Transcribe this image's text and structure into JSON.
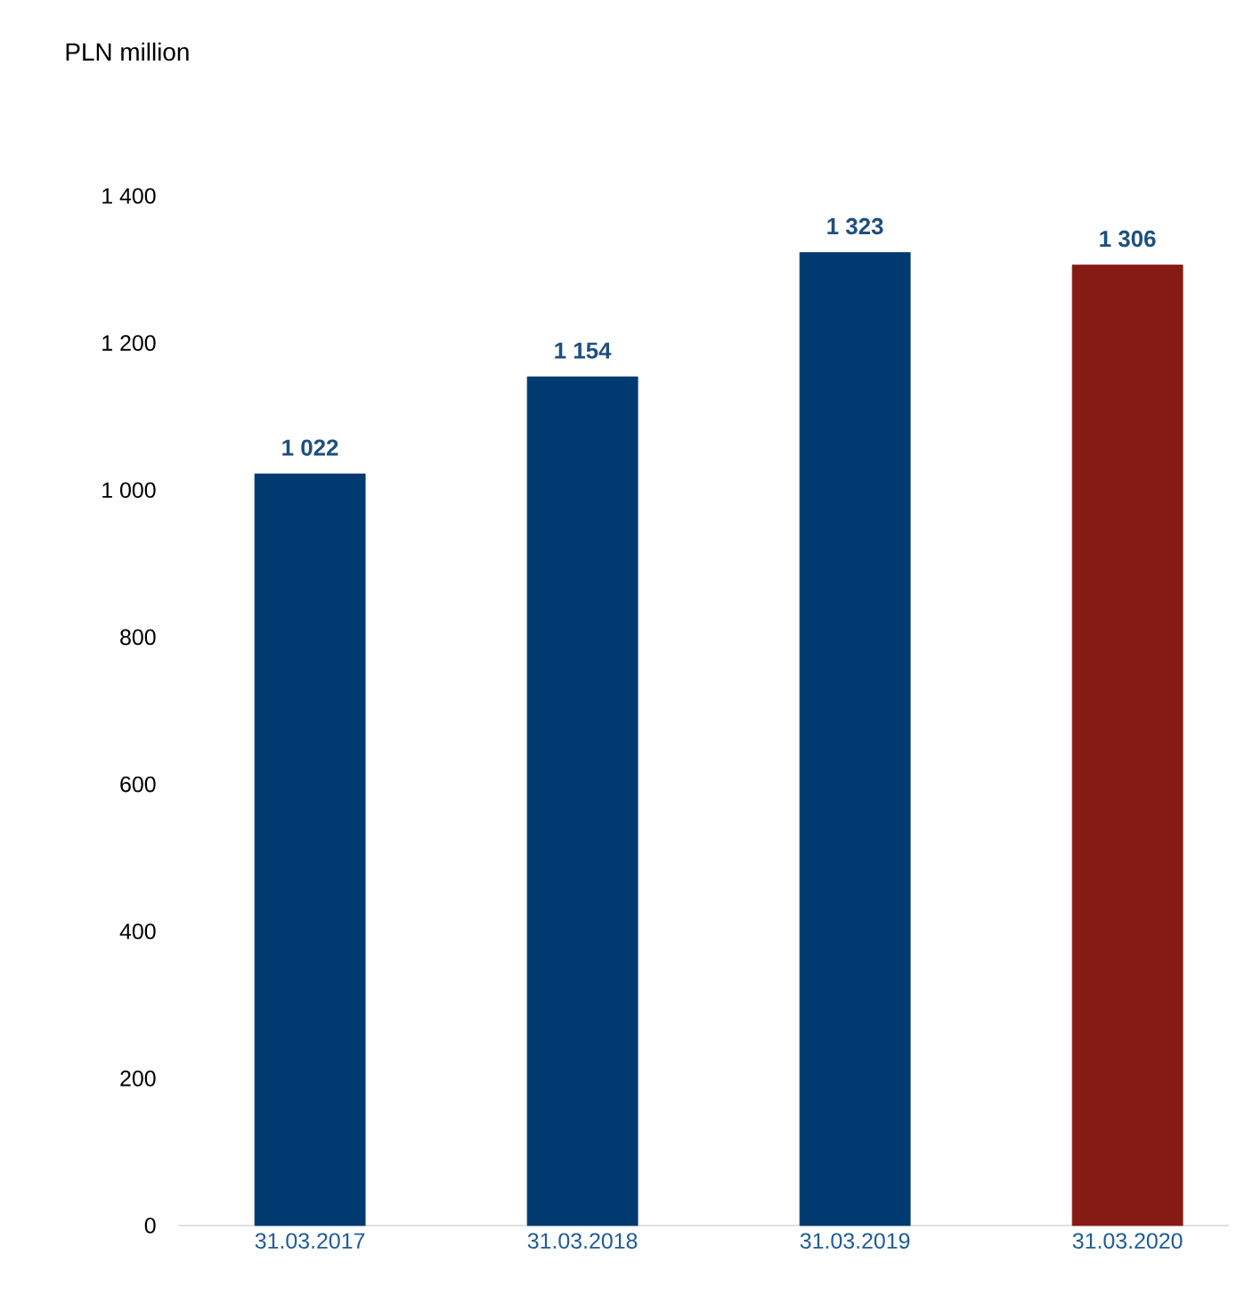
{
  "chart_data": {
    "type": "bar",
    "annotations": [
      "PLN million"
    ],
    "categories": [
      "31.03.2017",
      "31.03.2018",
      "31.03.2019",
      "31.03.2020"
    ],
    "values": [
      1022,
      1154,
      1323,
      1306
    ],
    "colors": [
      "#003a70",
      "#003a70",
      "#003a70",
      "#861a14"
    ],
    "value_labels": [
      "1 022",
      "1 154",
      "1 323",
      "1 306"
    ],
    "ylim": [
      0,
      1400
    ],
    "yticks": [
      0,
      200,
      400,
      600,
      800,
      {
        "value": 1000,
        "label": "1 000"
      },
      {
        "value": 1200,
        "label": "1 200"
      },
      {
        "value": 1400,
        "label": "1 400"
      }
    ],
    "grid": false
  }
}
